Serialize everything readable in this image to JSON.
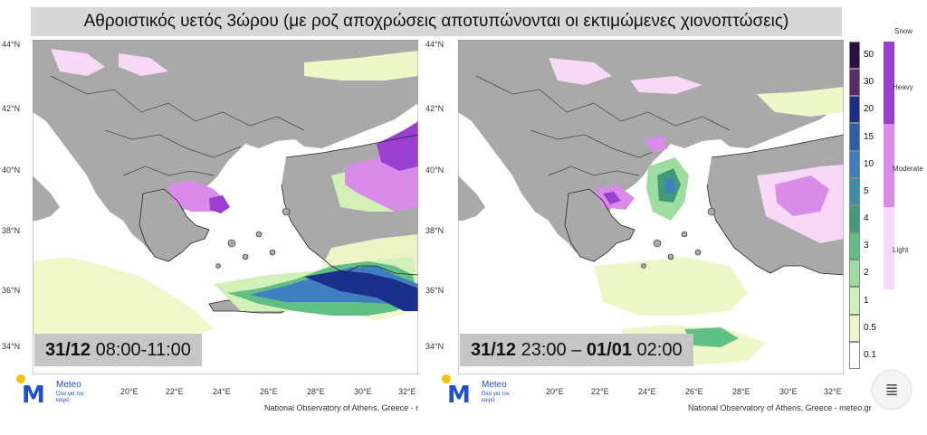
{
  "title": "Αθροιστικός υετός 3ώρου (με ροζ αποχρώσεις αποτυπώνονται οι εκτιμώμενες χιονοπτώσεις)",
  "panels": [
    {
      "time_date": "31/12",
      "time_text": " 08:00-11:00",
      "credit": "National Observatory of Athens, Greece - r"
    },
    {
      "time_date": "31/12",
      "time_text": " 23:00 – ",
      "time_date2": "01/01",
      "time_text2": " 02:00",
      "credit": "National Observatory of Athens, Greece - meteo.gr"
    }
  ],
  "lat_labels": [
    "44°N",
    "42°N",
    "40°N",
    "38°N",
    "36°N",
    "34°N"
  ],
  "lon_labels": [
    "20°E",
    "22°E",
    "24°E",
    "26°E",
    "28°E",
    "30°E",
    "32°E"
  ],
  "logo": {
    "brand": "Meteo",
    "tagline": "Όλα για τον καιρό"
  },
  "rain_scale": {
    "ticks": [
      "50",
      "30",
      "20",
      "15",
      "10",
      "5",
      "4",
      "3",
      "2",
      "1",
      "0.5",
      "0.1"
    ],
    "colors": [
      "#2a0f45",
      "#5a2a6b",
      "#1b2f8a",
      "#2f5ea8",
      "#3f7fbf",
      "#3a8fa0",
      "#3f9a7a",
      "#5fbf85",
      "#9fdca0",
      "#d2f0b8",
      "#eef7c8",
      "#ffffff"
    ]
  },
  "snow_scale": {
    "title": "Snow",
    "labels": [
      "Heavy",
      "Moderate",
      "Light"
    ],
    "colors": [
      "#9b3fd0",
      "#d98be8",
      "#f7d8f7"
    ]
  },
  "scan_icon": "text-scan-icon"
}
